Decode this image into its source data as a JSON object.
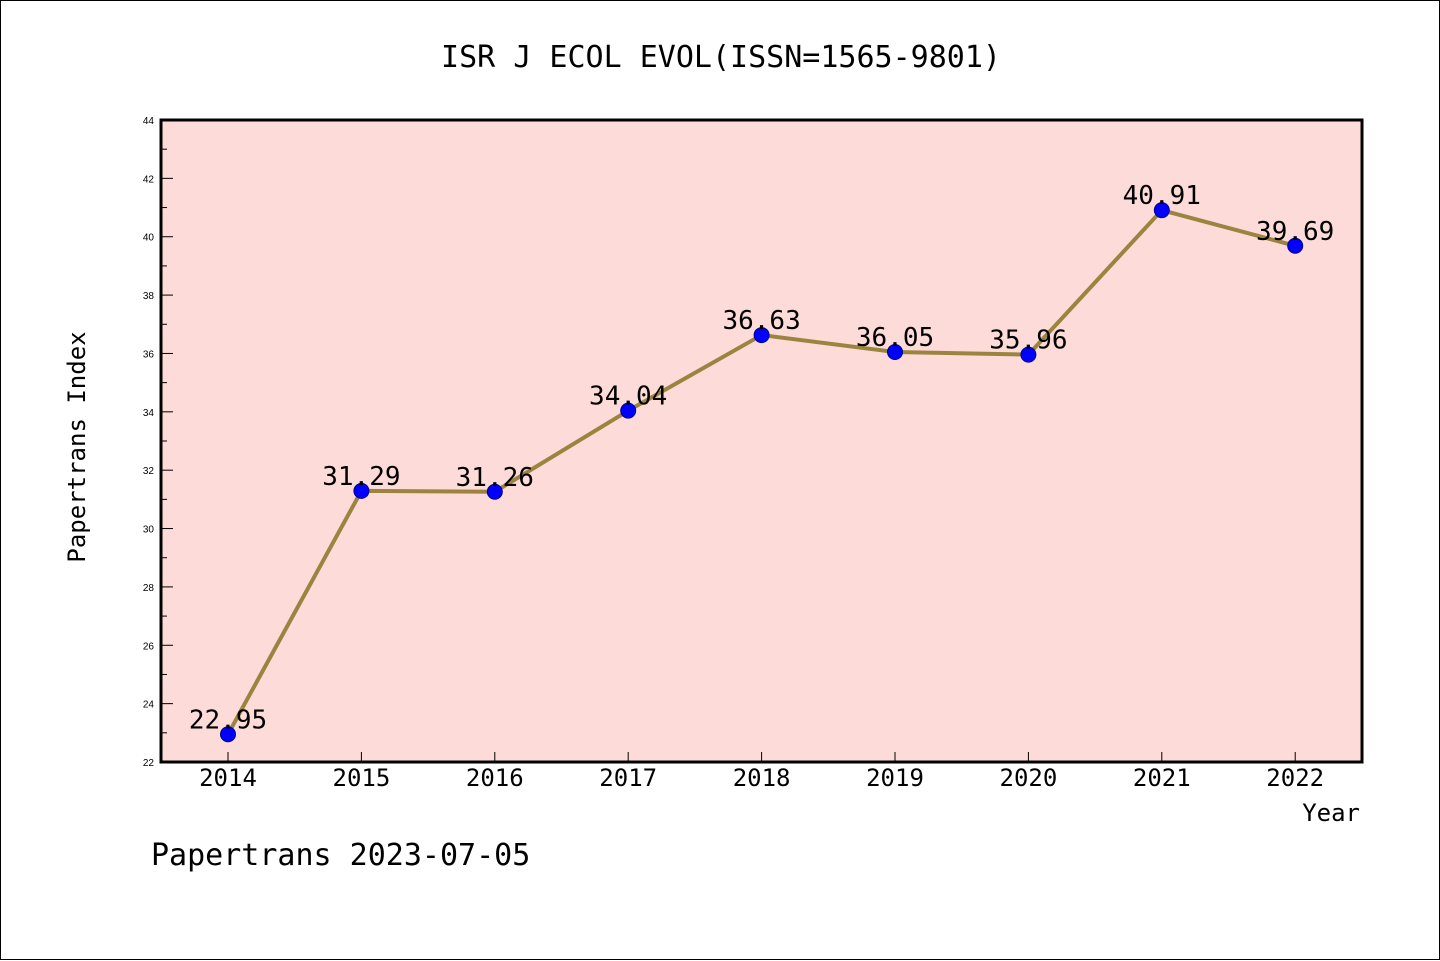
{
  "chart_data": {
    "type": "line",
    "title": "ISR J ECOL EVOL(ISSN=1565-9801)",
    "xlabel": "Year",
    "ylabel": "Papertrans Index",
    "categories": [
      "2014",
      "2015",
      "2016",
      "2017",
      "2018",
      "2019",
      "2020",
      "2021",
      "2022"
    ],
    "values": [
      22.95,
      31.29,
      31.26,
      34.04,
      36.63,
      36.05,
      35.96,
      40.91,
      39.69
    ],
    "data_labels": [
      "22.95",
      "31.29",
      "31.26",
      "34.04",
      "36.63",
      "36.05",
      "35.96",
      "40.91",
      "39.69"
    ],
    "ylim": [
      22,
      44
    ],
    "yticks": [
      22,
      24,
      26,
      28,
      30,
      32,
      34,
      36,
      38,
      40,
      42,
      44
    ],
    "grid": false,
    "colors": {
      "plot_background": "#fddbd8",
      "line": "#9b8340",
      "marker": "#0000ff",
      "marker_edge": "#00008b"
    }
  },
  "footer": {
    "text": "Papertrans 2023-07-05"
  }
}
